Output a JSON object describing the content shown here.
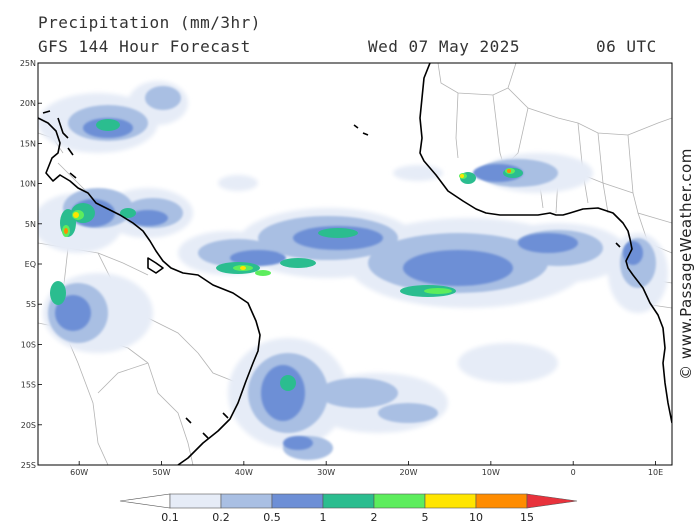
{
  "header": {
    "product": "Precipitation (mm/3hr)",
    "model": "GFS 144 Hour Forecast",
    "date": "Wed 07 May 2025",
    "time": "06 UTC"
  },
  "credit": "© www.PassageWeather.com",
  "map": {
    "lon_range": [
      -65,
      12
    ],
    "lat_range": [
      -25,
      25
    ],
    "lat_labels": [
      "25N",
      "20N",
      "15N",
      "10N",
      "5N",
      "EQ",
      "5S",
      "10S",
      "15S",
      "20S",
      "25S"
    ],
    "lon_labels": [
      "60W",
      "50W",
      "40W",
      "30W",
      "20W",
      "10W",
      "0",
      "10E"
    ]
  },
  "legend": {
    "labels": [
      "0.1",
      "0.2",
      "0.5",
      "1",
      "2",
      "5",
      "10",
      "15"
    ],
    "colors": [
      "#ffffff",
      "#e6ecf7",
      "#a9bfe3",
      "#6d8fd6",
      "#2bbd8f",
      "#5ded5d",
      "#ffe500",
      "#ff8c00",
      "#e8323c"
    ]
  }
}
